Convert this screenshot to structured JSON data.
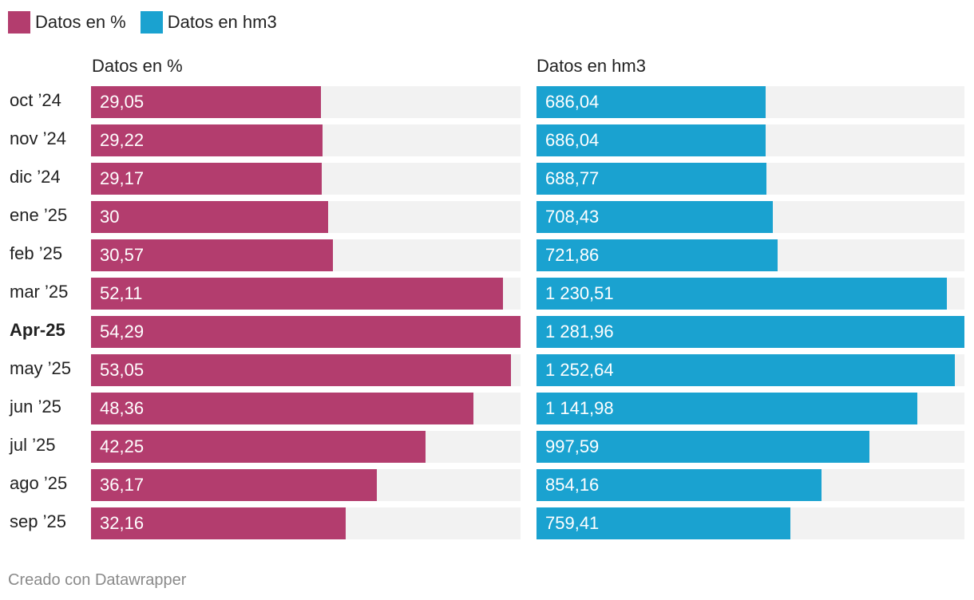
{
  "legend": [
    {
      "label": "Datos en %",
      "color": "#b33d6e"
    },
    {
      "label": "Datos en hm3",
      "color": "#1aa2d0"
    }
  ],
  "footer": "Creado con Datawrapper",
  "chart_data": {
    "type": "bar",
    "orientation": "horizontal",
    "title": "",
    "categories": [
      "oct ’24",
      "nov ’24",
      "dic ’24",
      "ene ’25",
      "feb ’25",
      "mar ’25",
      "Apr-25",
      "may ’25",
      "jun ’25",
      "jul ’25",
      "ago ’25",
      "sep ’25"
    ],
    "highlighted_category": "Apr-25",
    "series": [
      {
        "name": "Datos en %",
        "color": "#b33d6e",
        "values": [
          29.05,
          29.22,
          29.17,
          30,
          30.57,
          52.11,
          54.29,
          53.05,
          48.36,
          42.25,
          36.17,
          32.16
        ],
        "labels": [
          "29,05",
          "29,22",
          "29,17",
          "30",
          "30,57",
          "52,11",
          "54,29",
          "53,05",
          "48,36",
          "42,25",
          "36,17",
          "32,16"
        ],
        "max": 54.29
      },
      {
        "name": "Datos en hm3",
        "color": "#1aa2d0",
        "values": [
          686.04,
          686.04,
          688.77,
          708.43,
          721.86,
          1230.51,
          1281.96,
          1252.64,
          1141.98,
          997.59,
          854.16,
          759.41
        ],
        "labels": [
          "686,04",
          "686,04",
          "688,77",
          "708,43",
          "721,86",
          "1 230,51",
          "1 281,96",
          "1 252,64",
          "1 141,98",
          "997,59",
          "854,16",
          "759,41"
        ],
        "max": 1281.96
      }
    ],
    "track_color": "#f2f2f2"
  }
}
